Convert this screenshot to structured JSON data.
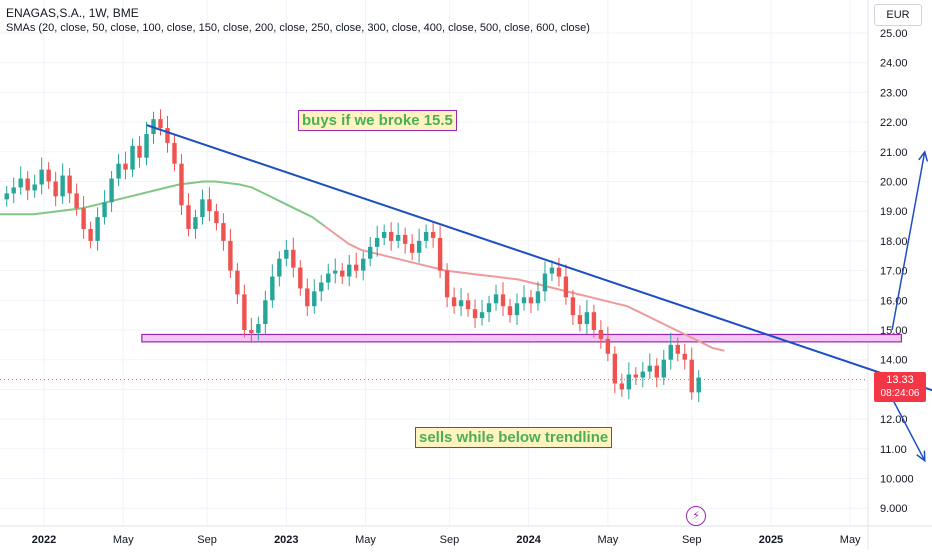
{
  "header": {
    "title": "ENAGAS,S.A., 1W, BME",
    "indicator": "SMAs (20, close, 50, close, 100, close, 150, close, 200, close, 250, close, 300, close, 400, close, 500, close, 600, close)",
    "currency": "EUR"
  },
  "price_tag": {
    "price": "13.33",
    "countdown": "08:24:06",
    "color": "#f23645"
  },
  "annotations": {
    "buy": "buys if we broke 15.5",
    "sell": "sells while below trendline"
  },
  "colors": {
    "up": "#26a69a",
    "down": "#ef5350",
    "trendline": "#1e4fc2",
    "sma_up": "#81c784",
    "sma_down": "#ef9a9a",
    "zone_fill": "#f3c6f3",
    "zone_border": "#9c27b0",
    "annotation_text": "#4caf50"
  },
  "chart_data": {
    "type": "candlestick",
    "title": "ENAGAS,S.A., 1W, BME",
    "y_axis": {
      "ticks": [
        "9.000",
        "10.000",
        "11.00",
        "12.00",
        "13.00",
        "14.00",
        "15.00",
        "16.00",
        "17.00",
        "18.00",
        "19.00",
        "20.00",
        "21.00",
        "22.00",
        "23.00",
        "24.00",
        "25.00"
      ],
      "range": [
        8.4,
        25.6
      ],
      "position": "right"
    },
    "x_axis": {
      "ticks": [
        "2022",
        "May",
        "Sep",
        "2023",
        "May",
        "Sep",
        "2024",
        "May",
        "Sep",
        "2025",
        "May"
      ],
      "tick_weeks": [
        0,
        17,
        35,
        52,
        69,
        87,
        104,
        121,
        139,
        156,
        173
      ]
    },
    "grid": true,
    "last_price": 13.33,
    "resistance_zone": {
      "low": 14.6,
      "high": 14.85,
      "from_week": 21,
      "to_week": 184
    },
    "series_ohlc_close": [
      19.6,
      19.8,
      20.1,
      19.7,
      19.9,
      20.4,
      20.0,
      19.5,
      20.2,
      19.6,
      19.1,
      18.4,
      18.0,
      18.8,
      19.3,
      20.1,
      20.6,
      20.4,
      21.2,
      20.8,
      21.6,
      22.1,
      21.8,
      21.3,
      20.6,
      19.2,
      18.4,
      18.8,
      19.4,
      19.0,
      18.6,
      18.0,
      17.0,
      16.2,
      15.0,
      14.9,
      15.2,
      16.0,
      16.8,
      17.4,
      17.7,
      17.1,
      16.4,
      15.8,
      16.3,
      16.6,
      16.9,
      17.0,
      16.8,
      17.2,
      17.0,
      17.4,
      17.8,
      18.1,
      18.3,
      18.0,
      18.2,
      17.9,
      17.6,
      18.0,
      18.3,
      18.1,
      17.0,
      16.1,
      15.8,
      16.0,
      15.7,
      15.4,
      15.6,
      15.9,
      16.2,
      15.8,
      15.5,
      15.9,
      16.1,
      15.9,
      16.3,
      16.9,
      17.1,
      16.8,
      16.1,
      15.5,
      15.2,
      15.6,
      15.0,
      14.7,
      14.2,
      13.2,
      13.0,
      13.5,
      13.4,
      13.6,
      13.8,
      13.4,
      14.0,
      14.5,
      14.2,
      14.0,
      12.9,
      13.4,
      13.8,
      13.7,
      13.6,
      13.9,
      13.8,
      14.1,
      13.9,
      13.7,
      13.5,
      13.33
    ],
    "sma_50_approx": [
      18.9,
      18.9,
      18.9,
      18.9,
      18.95,
      19.0,
      19.05,
      19.1,
      19.2,
      19.3,
      19.4,
      19.5,
      19.6,
      19.7,
      19.8,
      19.9,
      19.95,
      20.0,
      20.0,
      19.95,
      19.9,
      19.8,
      19.6,
      19.4,
      19.2,
      19.0,
      18.8,
      18.5,
      18.2,
      17.9,
      17.7,
      17.6,
      17.5,
      17.4,
      17.3,
      17.2,
      17.1,
      17.0,
      16.95,
      16.9,
      16.85,
      16.8,
      16.75,
      16.7,
      16.6,
      16.5,
      16.4,
      16.3,
      16.2,
      16.1,
      16.0,
      15.9,
      15.8,
      15.6,
      15.4,
      15.2,
      15.0,
      14.8,
      14.6,
      14.4,
      14.3
    ],
    "trendline": {
      "from": [
        22,
        21.9
      ],
      "to": [
        191,
        12.95
      ]
    },
    "arrows": [
      {
        "from": [
          182,
          15.0
        ],
        "to": [
          189,
          21.0
        ]
      },
      {
        "from": [
          181,
          13.0
        ],
        "to": [
          189,
          10.6
        ]
      }
    ]
  }
}
